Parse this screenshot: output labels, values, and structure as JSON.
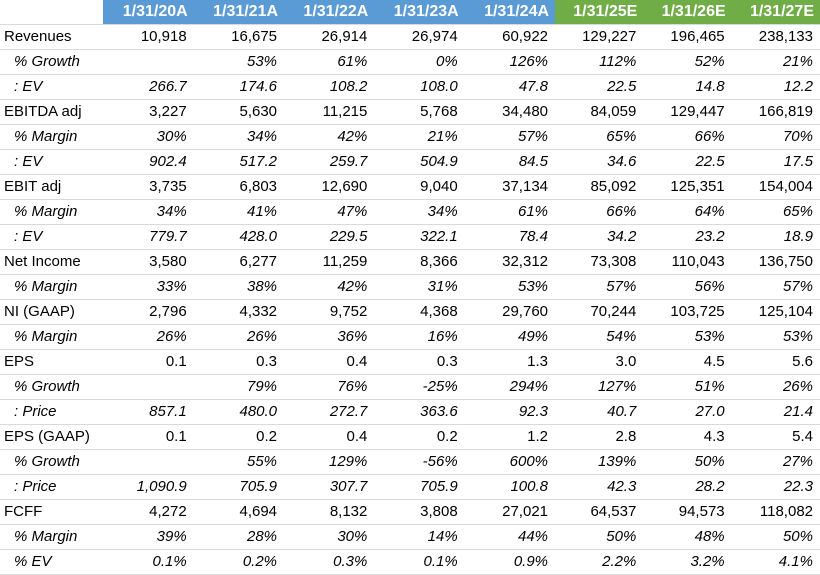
{
  "colors": {
    "actual_header": "#5b9bd5",
    "estimate_header": "#70ad47",
    "header_text": "#ffffff",
    "gridline": "#d9d9d9"
  },
  "header": {
    "periods": [
      {
        "label": "1/31/20A",
        "kind": "actual"
      },
      {
        "label": "1/31/21A",
        "kind": "actual"
      },
      {
        "label": "1/31/22A",
        "kind": "actual"
      },
      {
        "label": "1/31/23A",
        "kind": "actual"
      },
      {
        "label": "1/31/24A",
        "kind": "actual"
      },
      {
        "label": "1/31/25E",
        "kind": "estimate"
      },
      {
        "label": "1/31/26E",
        "kind": "estimate"
      },
      {
        "label": "1/31/27E",
        "kind": "estimate"
      }
    ]
  },
  "rows": [
    {
      "label": "Revenues",
      "style": "main",
      "values": [
        "10,918",
        "16,675",
        "26,914",
        "26,974",
        "60,922",
        "129,227",
        "196,465",
        "238,133"
      ]
    },
    {
      "label": "% Growth",
      "style": "sub",
      "values": [
        "",
        "53%",
        "61%",
        "0%",
        "126%",
        "112%",
        "52%",
        "21%"
      ]
    },
    {
      "label": ": EV",
      "style": "sub",
      "values": [
        "266.7",
        "174.6",
        "108.2",
        "108.0",
        "47.8",
        "22.5",
        "14.8",
        "12.2"
      ]
    },
    {
      "label": "EBITDA adj",
      "style": "main",
      "values": [
        "3,227",
        "5,630",
        "11,215",
        "5,768",
        "34,480",
        "84,059",
        "129,447",
        "166,819"
      ]
    },
    {
      "label": "% Margin",
      "style": "sub",
      "values": [
        "30%",
        "34%",
        "42%",
        "21%",
        "57%",
        "65%",
        "66%",
        "70%"
      ]
    },
    {
      "label": ": EV",
      "style": "sub",
      "values": [
        "902.4",
        "517.2",
        "259.7",
        "504.9",
        "84.5",
        "34.6",
        "22.5",
        "17.5"
      ]
    },
    {
      "label": "EBIT adj",
      "style": "main",
      "values": [
        "3,735",
        "6,803",
        "12,690",
        "9,040",
        "37,134",
        "85,092",
        "125,351",
        "154,004"
      ]
    },
    {
      "label": "% Margin",
      "style": "sub",
      "values": [
        "34%",
        "41%",
        "47%",
        "34%",
        "61%",
        "66%",
        "64%",
        "65%"
      ]
    },
    {
      "label": ": EV",
      "style": "sub",
      "values": [
        "779.7",
        "428.0",
        "229.5",
        "322.1",
        "78.4",
        "34.2",
        "23.2",
        "18.9"
      ]
    },
    {
      "label": "Net Income",
      "style": "main",
      "values": [
        "3,580",
        "6,277",
        "11,259",
        "8,366",
        "32,312",
        "73,308",
        "110,043",
        "136,750"
      ]
    },
    {
      "label": "% Margin",
      "style": "sub",
      "values": [
        "33%",
        "38%",
        "42%",
        "31%",
        "53%",
        "57%",
        "56%",
        "57%"
      ]
    },
    {
      "label": "NI (GAAP)",
      "style": "main",
      "values": [
        "2,796",
        "4,332",
        "9,752",
        "4,368",
        "29,760",
        "70,244",
        "103,725",
        "125,104"
      ]
    },
    {
      "label": "% Margin",
      "style": "sub",
      "values": [
        "26%",
        "26%",
        "36%",
        "16%",
        "49%",
        "54%",
        "53%",
        "53%"
      ]
    },
    {
      "label": "EPS",
      "style": "main",
      "values": [
        "0.1",
        "0.3",
        "0.4",
        "0.3",
        "1.3",
        "3.0",
        "4.5",
        "5.6"
      ]
    },
    {
      "label": "% Growth",
      "style": "sub",
      "values": [
        "",
        "79%",
        "76%",
        "-25%",
        "294%",
        "127%",
        "51%",
        "26%"
      ]
    },
    {
      "label": ": Price",
      "style": "sub",
      "values": [
        "857.1",
        "480.0",
        "272.7",
        "363.6",
        "92.3",
        "40.7",
        "27.0",
        "21.4"
      ]
    },
    {
      "label": "EPS (GAAP)",
      "style": "main",
      "values": [
        "0.1",
        "0.2",
        "0.4",
        "0.2",
        "1.2",
        "2.8",
        "4.3",
        "5.4"
      ]
    },
    {
      "label": "% Growth",
      "style": "sub",
      "values": [
        "",
        "55%",
        "129%",
        "-56%",
        "600%",
        "139%",
        "50%",
        "27%"
      ]
    },
    {
      "label": ": Price",
      "style": "sub",
      "values": [
        "1,090.9",
        "705.9",
        "307.7",
        "705.9",
        "100.8",
        "42.3",
        "28.2",
        "22.3"
      ]
    },
    {
      "label": "FCFF",
      "style": "main",
      "values": [
        "4,272",
        "4,694",
        "8,132",
        "3,808",
        "27,021",
        "64,537",
        "94,573",
        "118,082"
      ]
    },
    {
      "label": "% Margin",
      "style": "sub",
      "values": [
        "39%",
        "28%",
        "30%",
        "14%",
        "44%",
        "50%",
        "48%",
        "50%"
      ]
    },
    {
      "label": "% EV",
      "style": "sub",
      "values": [
        "0.1%",
        "0.2%",
        "0.3%",
        "0.1%",
        "0.9%",
        "2.2%",
        "3.2%",
        "4.1%"
      ]
    }
  ]
}
